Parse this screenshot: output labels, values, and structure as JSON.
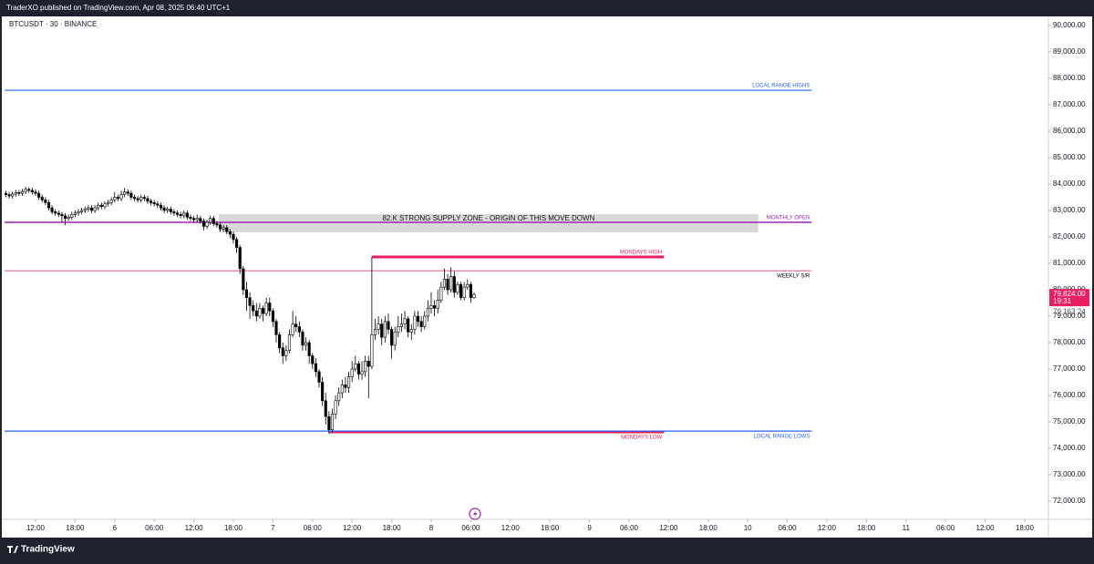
{
  "header": {
    "publisher": "TraderXO published on TradingView.com, Apr 08, 2025 06:40 UTC+1"
  },
  "footer": {
    "brand": "TradingView"
  },
  "chart_data": {
    "type": "candlestick",
    "title": "BTCUSDT · 30 · BINANCE",
    "candle_up_color": "#ffffff",
    "candle_down_color": "#000000",
    "candle_border_color": "#000000",
    "x": [
      -16.5,
      -16,
      -15.5,
      -15,
      -14.5,
      -14,
      -13.5,
      -13,
      -12.5,
      -12,
      -11.5,
      -11,
      -10.5,
      -10,
      -9.5,
      -9,
      -8.5,
      -8,
      -7.5,
      -7,
      -6.5,
      -6,
      -5.5,
      -5,
      -4.5,
      -4,
      -3.5,
      -3,
      -2.5,
      -2,
      -1.5,
      -1,
      -0.5,
      0,
      0.5,
      1,
      1.5,
      2,
      2.5,
      3,
      3.5,
      4,
      4.5,
      5,
      5.5,
      6,
      6.5,
      7,
      7.5,
      8,
      8.5,
      9,
      9.5,
      10,
      10.5,
      11,
      11.5,
      12,
      12.5,
      13,
      13.5,
      14,
      14.5,
      15,
      15.5,
      16,
      16.5,
      17,
      17.5,
      18,
      18.5,
      19,
      19.5,
      20,
      20.5,
      21,
      21.5,
      22,
      22.5,
      23,
      23.5,
      24,
      24.5,
      25,
      25.5,
      26,
      26.5,
      27,
      27.5,
      28,
      28.5,
      29,
      29.5,
      30,
      30.5,
      31,
      31.5,
      32,
      32.5,
      33,
      33.5,
      34,
      34.5,
      35,
      35.5,
      36,
      36.5,
      37,
      37.5,
      38,
      38.5,
      39,
      39.5,
      40,
      40.5,
      41,
      41.5,
      42,
      42.5,
      43,
      43.5,
      44,
      44.5,
      45,
      45.5,
      46,
      46.5,
      47,
      47.5,
      48,
      48.5,
      49,
      49.5,
      50,
      50.5,
      51,
      51.5,
      52,
      52.5,
      53,
      53.5,
      54,
      54.5
    ],
    "open": [
      83650,
      83600,
      83550,
      83620,
      83680,
      83650,
      83720,
      83800,
      83760,
      83700,
      83650,
      83500,
      83400,
      83300,
      83100,
      82950,
      82900,
      82850,
      82800,
      82700,
      82750,
      82850,
      82900,
      82950,
      83000,
      83050,
      83100,
      83000,
      83100,
      83200,
      83150,
      83250,
      83300,
      83400,
      83500,
      83450,
      83600,
      83700,
      83650,
      83500,
      83450,
      83400,
      83500,
      83450,
      83350,
      83300,
      83250,
      83200,
      83100,
      83000,
      83050,
      82950,
      82900,
      82850,
      82800,
      82900,
      82750,
      82700,
      82650,
      82700,
      82600,
      82400,
      82550,
      82700,
      82500,
      82450,
      82300,
      82350,
      82200,
      82100,
      81900,
      81600,
      80800,
      80000,
      79700,
      79400,
      79200,
      79000,
      79300,
      79100,
      79500,
      79200,
      78800,
      78300,
      77800,
      77500,
      77700,
      78300,
      78700,
      78600,
      78400,
      77900,
      78000,
      77500,
      77200,
      76900,
      76500,
      75800,
      75200,
      74700,
      75300,
      75800,
      76100,
      76400,
      76300,
      76700,
      77000,
      77200,
      76800,
      76900,
      77300,
      77100,
      78300,
      78500,
      78700,
      78200,
      78800,
      78500,
      77900,
      78400,
      78600,
      78700,
      78900,
      78400,
      78500,
      79000,
      78800,
      78600,
      79000,
      79300,
      79400,
      79300,
      79600,
      80100,
      80400,
      80000,
      80500,
      79900,
      80200,
      79700,
      80100,
      80200,
      79700
    ],
    "high": [
      83750,
      83700,
      83720,
      83780,
      83780,
      83820,
      83900,
      83880,
      83860,
      83800,
      83750,
      83600,
      83500,
      83400,
      83200,
      83050,
      83000,
      82950,
      82900,
      82850,
      82950,
      83000,
      83050,
      83100,
      83150,
      83200,
      83200,
      83200,
      83300,
      83300,
      83350,
      83400,
      83500,
      83700,
      83600,
      83750,
      83850,
      83800,
      83750,
      83600,
      83550,
      83600,
      83600,
      83550,
      83450,
      83400,
      83350,
      83300,
      83200,
      83150,
      83150,
      83050,
      83000,
      82950,
      83000,
      83000,
      82850,
      82800,
      82850,
      82800,
      82700,
      82650,
      82800,
      82800,
      82600,
      82550,
      82450,
      82450,
      82300,
      82200,
      82000,
      81700,
      80900,
      80300,
      79900,
      79600,
      79500,
      79500,
      79400,
      79700,
      79700,
      79300,
      78900,
      78400,
      78000,
      77900,
      78500,
      79200,
      79000,
      78800,
      78500,
      78200,
      78100,
      77600,
      77400,
      77000,
      76700,
      76100,
      75400,
      75500,
      76000,
      76300,
      76600,
      76700,
      76900,
      77300,
      77500,
      77300,
      77300,
      77500,
      77500,
      81240,
      78900,
      79000,
      78900,
      79000,
      79100,
      78600,
      78600,
      79000,
      79100,
      79200,
      79000,
      78700,
      79200,
      79200,
      79000,
      79200,
      79600,
      79900,
      79600,
      80000,
      80300,
      80800,
      80600,
      80850,
      80700,
      80300,
      80300,
      80300,
      80400,
      80300,
      79900
    ],
    "low": [
      83500,
      83450,
      83450,
      83520,
      83550,
      83550,
      83620,
      83660,
      83600,
      83550,
      83400,
      83300,
      83200,
      83000,
      82850,
      82800,
      82750,
      82550,
      82450,
      82600,
      82650,
      82750,
      82800,
      82850,
      82900,
      82950,
      82900,
      82900,
      83000,
      83050,
      83050,
      83150,
      83200,
      83300,
      83350,
      83350,
      83500,
      83550,
      83400,
      83350,
      83300,
      83300,
      83350,
      83250,
      83200,
      83150,
      83100,
      83000,
      82900,
      82900,
      82850,
      82800,
      82750,
      82700,
      82700,
      82650,
      82600,
      82550,
      82550,
      82500,
      82250,
      82300,
      82450,
      82400,
      82350,
      82200,
      82200,
      82100,
      81950,
      81750,
      81400,
      80600,
      79800,
      79200,
      78900,
      79000,
      78800,
      78900,
      78800,
      79000,
      79000,
      78600,
      78000,
      77600,
      77200,
      77300,
      77600,
      78200,
      78400,
      78200,
      77700,
      77700,
      77200,
      77000,
      76700,
      76300,
      75600,
      74900,
      74550,
      74600,
      75100,
      75600,
      75900,
      76100,
      76100,
      76500,
      76900,
      76600,
      76600,
      76700,
      75900,
      77000,
      78100,
      78300,
      77900,
      78000,
      78300,
      77400,
      77700,
      78200,
      78400,
      78500,
      78200,
      78100,
      78300,
      78600,
      78400,
      78500,
      78800,
      79100,
      79000,
      79100,
      79500,
      80000,
      79800,
      79900,
      79700,
      79800,
      79600,
      79600,
      80000,
      79500,
      79650
    ],
    "close": [
      83600,
      83550,
      83620,
      83680,
      83650,
      83720,
      83800,
      83760,
      83700,
      83650,
      83500,
      83400,
      83300,
      83100,
      82950,
      82900,
      82850,
      82800,
      82700,
      82750,
      82850,
      82900,
      82950,
      83000,
      83050,
      83100,
      83000,
      83100,
      83200,
      83150,
      83250,
      83300,
      83400,
      83500,
      83450,
      83600,
      83700,
      83650,
      83500,
      83450,
      83400,
      83500,
      83450,
      83350,
      83300,
      83250,
      83200,
      83100,
      83000,
      83050,
      82950,
      82900,
      82850,
      82800,
      82900,
      82750,
      82700,
      82650,
      82700,
      82600,
      82400,
      82550,
      82700,
      82500,
      82450,
      82300,
      82350,
      82200,
      82100,
      81900,
      81600,
      80800,
      80000,
      79700,
      79400,
      79200,
      79000,
      79300,
      79100,
      79500,
      79200,
      78800,
      78300,
      77800,
      77500,
      77700,
      78300,
      78700,
      78600,
      78400,
      77900,
      78000,
      77500,
      77200,
      76900,
      76500,
      75800,
      75200,
      74700,
      75300,
      75800,
      76100,
      76400,
      76300,
      76700,
      77000,
      77200,
      76800,
      76900,
      77300,
      77100,
      78300,
      78500,
      78700,
      78200,
      78800,
      78500,
      77900,
      78400,
      78600,
      78700,
      78900,
      78400,
      78500,
      79000,
      78800,
      78600,
      79000,
      79300,
      79400,
      79300,
      79600,
      80100,
      80400,
      80000,
      80500,
      79900,
      80200,
      79700,
      80100,
      80200,
      79700,
      79824
    ],
    "xlim": [
      -16.7,
      141.6
    ],
    "ylim": [
      71310,
      90345
    ],
    "xticks": [
      {
        "value": -12,
        "label": "12:00"
      },
      {
        "value": -6,
        "label": "18:00"
      },
      {
        "value": 0,
        "label": "6"
      },
      {
        "value": 6,
        "label": "06:00"
      },
      {
        "value": 12,
        "label": "12:00"
      },
      {
        "value": 18,
        "label": "18:00"
      },
      {
        "value": 24,
        "label": "7"
      },
      {
        "value": 30,
        "label": "06:00"
      },
      {
        "value": 36,
        "label": "12:00"
      },
      {
        "value": 42,
        "label": "18:00"
      },
      {
        "value": 48,
        "label": "8"
      },
      {
        "value": 54,
        "label": "06:00"
      },
      {
        "value": 60,
        "label": "12:00"
      },
      {
        "value": 66,
        "label": "18:00"
      },
      {
        "value": 72,
        "label": "9"
      },
      {
        "value": 78,
        "label": "06:00"
      },
      {
        "value": 84,
        "label": "12:00"
      },
      {
        "value": 90,
        "label": "18:00"
      },
      {
        "value": 96,
        "label": "10"
      },
      {
        "value": 102,
        "label": "06:00"
      },
      {
        "value": 108,
        "label": "12:00"
      },
      {
        "value": 114,
        "label": "18:00"
      },
      {
        "value": 120,
        "label": "11"
      },
      {
        "value": 126,
        "label": "06:00"
      },
      {
        "value": 132,
        "label": "12:00"
      },
      {
        "value": 138,
        "label": "18:00"
      }
    ],
    "yticks": [
      {
        "value": 90000,
        "label": "90,000.00"
      },
      {
        "value": 89000,
        "label": "89,000.00"
      },
      {
        "value": 88000,
        "label": "88,000.00"
      },
      {
        "value": 87000,
        "label": "87,000.00"
      },
      {
        "value": 86000,
        "label": "86,000.00"
      },
      {
        "value": 85000,
        "label": "85,000.00"
      },
      {
        "value": 84000,
        "label": "84,000.00"
      },
      {
        "value": 83000,
        "label": "83,000.00"
      },
      {
        "value": 82000,
        "label": "82,000.00"
      },
      {
        "value": 81000,
        "label": "81,000.00"
      },
      {
        "value": 80000,
        "label": "80,000.00"
      },
      {
        "value": 79000,
        "label": "79,000.00"
      },
      {
        "value": 78000,
        "label": "78,000.00"
      },
      {
        "value": 77000,
        "label": "77,000.00"
      },
      {
        "value": 76000,
        "label": "76,000.00"
      },
      {
        "value": 75000,
        "label": "75,000.00"
      },
      {
        "value": 74000,
        "label": "74,000.00"
      },
      {
        "value": 73000,
        "label": "73,000.00"
      },
      {
        "value": 72000,
        "label": "72,000.00"
      }
    ],
    "last_price": {
      "value": 79824,
      "label": "79,824.00",
      "countdown": "19:31",
      "color": "#e91e63"
    },
    "marker_price": {
      "value": 79163.24,
      "label": "79,163.24"
    },
    "zone": {
      "label": "82.K STRONG SUPPLY ZONE - ORIGIN OF THIS MOVE DOWN",
      "y0": 82170,
      "y1": 82860,
      "x0": 15.8,
      "x1": 97.6,
      "color": "#d9d9d9"
    },
    "levels": [
      {
        "label": "LOCAL RANGE HIGHS",
        "value": 87550,
        "x0": -16.7,
        "x1": 105.7,
        "color": "#2962ff",
        "label_color": "#2962ff",
        "width": 1.2,
        "label_position": "above"
      },
      {
        "label": "MONTHLY OPEN",
        "value": 82550,
        "x0": -16.7,
        "x1": 105.7,
        "color": "#9c27b0",
        "label_color": "#9c27b0",
        "width": 1.5,
        "label_position": "above"
      },
      {
        "label": "WEEKLY S/R",
        "value": 80720,
        "x0": -16.7,
        "x1": 105.7,
        "color": "#e91e63",
        "label_color": "#000000",
        "width": 0.8,
        "label_position": "below"
      },
      {
        "label": "MONDAYS HIGH",
        "value": 81240,
        "x0": 39,
        "x1": 83.3,
        "color": "#e91e63",
        "label_color": "#e91e63",
        "width": 3,
        "label_position": "above"
      },
      {
        "label": "MONDAYS LOW",
        "value": 74620,
        "x0": 32.5,
        "x1": 83.3,
        "color": "#e91e63",
        "label_color": "#e91e63",
        "width": 3,
        "label_position": "below"
      },
      {
        "label": "LOCAL RANGE LOWS",
        "value": 74650,
        "x0": -16.7,
        "x1": 105.7,
        "color": "#2962ff",
        "label_color": "#2962ff",
        "width": 1.2,
        "label_position": "below"
      }
    ]
  }
}
